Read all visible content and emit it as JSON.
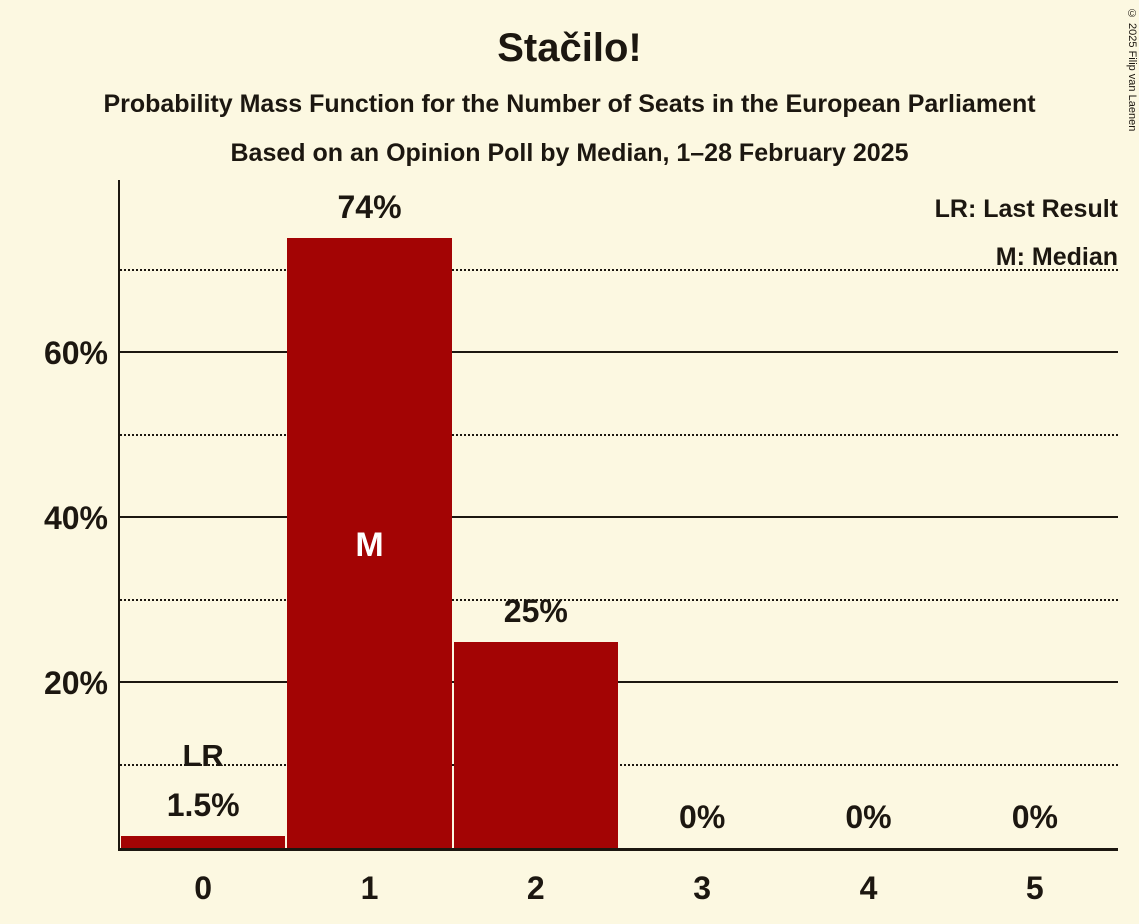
{
  "title": "Stačilo!",
  "subtitles": {
    "line1": "Probability Mass Function for the Number of Seats in the European Parliament",
    "line2": "Based on an Opinion Poll by Median, 1–28 February 2025"
  },
  "legend": {
    "line1": "LR: Last Result",
    "line2": "M: Median"
  },
  "copyright": "© 2025 Filip van Laenen",
  "colors": {
    "background": "#FCF8E1",
    "bar": "#A30404",
    "text": "#1C1710"
  },
  "chart_data": {
    "type": "bar",
    "title": "Stačilo!",
    "xlabel": "",
    "ylabel": "",
    "categories": [
      "0",
      "1",
      "2",
      "3",
      "4",
      "5"
    ],
    "values": [
      1.5,
      74,
      25,
      0,
      0,
      0
    ],
    "bar_labels": [
      "1.5%",
      "74%",
      "25%",
      "0%",
      "0%",
      "0%"
    ],
    "ylim": [
      0,
      81
    ],
    "grid": true,
    "legend_position": "top-right",
    "gridlines": [
      {
        "value": 10,
        "style": "dotted",
        "label": ""
      },
      {
        "value": 20,
        "style": "solid",
        "label": "20%"
      },
      {
        "value": 30,
        "style": "dotted",
        "label": ""
      },
      {
        "value": 40,
        "style": "solid",
        "label": "40%"
      },
      {
        "value": 50,
        "style": "dotted",
        "label": ""
      },
      {
        "value": 60,
        "style": "solid",
        "label": "60%"
      },
      {
        "value": 70,
        "style": "dotted",
        "label": ""
      }
    ],
    "annotations": [
      {
        "index": 0,
        "text": "LR",
        "placement": "above"
      },
      {
        "index": 1,
        "text": "M",
        "placement": "inside"
      }
    ]
  }
}
